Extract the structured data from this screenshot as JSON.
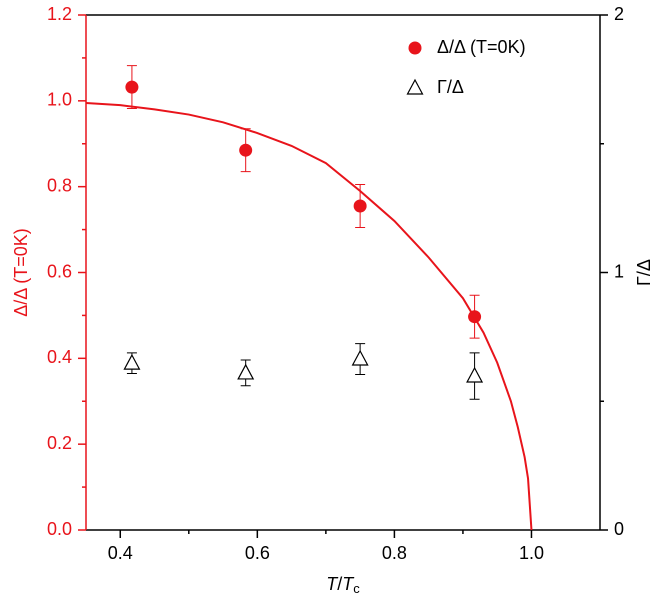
{
  "chart_data": {
    "type": "scatter",
    "xlabel": [
      "T",
      "/",
      "T",
      "c"
    ],
    "ylabel": "Δ/Δ (T=0K)",
    "y2label": "Γ/Δ",
    "xlim": [
      0.35,
      1.1
    ],
    "xticks": [
      0.4,
      0.6,
      0.8,
      {
        "value": 1.0,
        "label": "1.0"
      }
    ],
    "xminor": [
      0.5,
      0.7,
      0.9
    ],
    "ylim": [
      0,
      1.2
    ],
    "yticks": [
      {
        "value": 0,
        "label": "0.0"
      },
      0.2,
      0.4,
      0.6,
      0.8,
      {
        "value": 1.0,
        "label": "1.0"
      },
      1.2
    ],
    "yminor": [
      0.1,
      0.3,
      0.5,
      0.7,
      0.9,
      1.1
    ],
    "y2lim": [
      0,
      2
    ],
    "y2ticks": [
      0,
      1,
      2
    ],
    "y2minor": [
      0.5,
      1.5
    ],
    "left_axis_color": "#e8141b",
    "legend": "upper right",
    "series": [
      {
        "name": "Δ/Δ (T=0K)",
        "color": "#e8141b",
        "marker": "circle",
        "x": [
          0.417,
          0.583,
          0.75,
          0.917
        ],
        "values": [
          1.032,
          0.885,
          0.755,
          0.497
        ],
        "errors": [
          0.05,
          0.05,
          0.05,
          0.05
        ]
      },
      {
        "name": "Γ/Δ",
        "color": "#000000",
        "marker": "triangle",
        "axis": "y2",
        "x": [
          0.417,
          0.583,
          0.75,
          0.917
        ],
        "values": [
          0.648,
          0.61,
          0.664,
          0.598
        ],
        "errors": [
          0.04,
          0.05,
          0.06,
          0.09
        ]
      },
      {
        "color": "#e8141b",
        "marker": "line",
        "x": [
          0.35,
          0.4,
          0.45,
          0.5,
          0.55,
          0.6,
          0.65,
          0.7,
          0.75,
          0.8,
          0.85,
          0.9,
          0.93,
          0.95,
          0.97,
          0.98,
          0.99,
          0.995,
          1.0
        ],
        "values": [
          0.995,
          0.99,
          0.98,
          0.968,
          0.95,
          0.925,
          0.895,
          0.855,
          0.79,
          0.72,
          0.635,
          0.54,
          0.46,
          0.39,
          0.3,
          0.24,
          0.17,
          0.12,
          0
        ]
      }
    ]
  }
}
